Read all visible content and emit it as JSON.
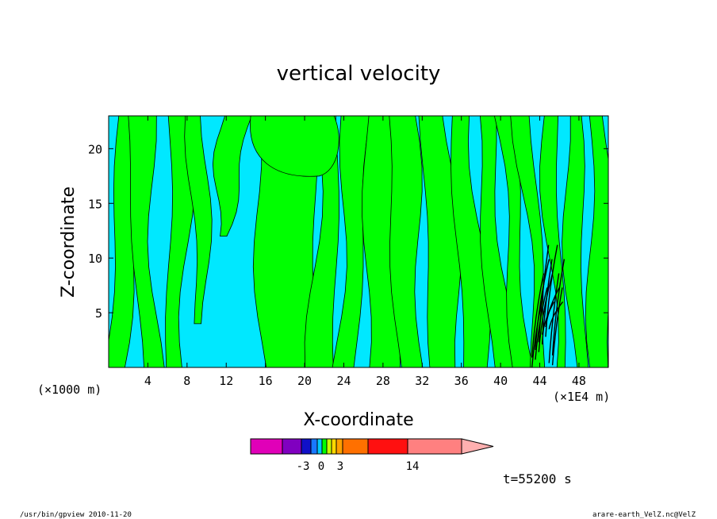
{
  "chart_data": {
    "type": "heatmap",
    "title": "vertical velocity",
    "xlabel": "X-coordinate",
    "ylabel": "Z-coordinate",
    "x_unit": "(×1000 m)",
    "x_unit_right": "(×1E4 m)",
    "xlim": [
      0,
      51
    ],
    "ylim": [
      0,
      23
    ],
    "x_ticks": [
      4,
      8,
      12,
      16,
      20,
      24,
      28,
      32,
      36,
      40,
      44,
      48
    ],
    "y_ticks": [
      5,
      10,
      15,
      20
    ],
    "colorbar": {
      "colors": [
        "#e000b8",
        "#8000c0",
        "#1010c8",
        "#1878ff",
        "#00c8ff",
        "#00ff00",
        "#c8ff00",
        "#ffd800",
        "#ffa000",
        "#ff7000",
        "#ff1010",
        "#ff8080",
        "#ffb0b0"
      ],
      "tick_labels": [
        "-3",
        "0",
        "3",
        "14"
      ],
      "tick_values": [
        -3,
        0,
        3,
        14
      ]
    },
    "dominant_colors": {
      "negative": "#00e8ff",
      "positive": "#00ff00"
    },
    "time_label": "t=55200 s"
  },
  "footer": {
    "left": "/usr/bin/gpview   2010-11-20",
    "right": "arare-earth_VelZ.nc@VelZ"
  }
}
